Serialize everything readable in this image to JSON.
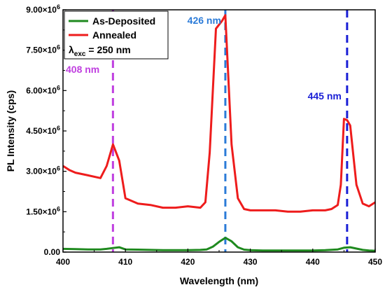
{
  "chart_data": {
    "type": "line",
    "xlabel": "Wavelength (nm)",
    "ylabel": "PL Intensity (cps)",
    "xlim": [
      400,
      450
    ],
    "ylim": [
      0,
      9000000
    ],
    "x_ticks": [
      400,
      410,
      420,
      430,
      440,
      450
    ],
    "x_tick_labels": [
      "400",
      "410",
      "420",
      "430",
      "440",
      "450"
    ],
    "y_ticks": [
      0,
      1500000,
      3000000,
      4500000,
      6000000,
      7500000,
      9000000
    ],
    "y_tick_labels": [
      {
        "base": "0.00",
        "exp": ""
      },
      {
        "base": "1.50×10",
        "exp": "6"
      },
      {
        "base": "3.00×10",
        "exp": "6"
      },
      {
        "base": "4.50×10",
        "exp": "6"
      },
      {
        "base": "6.00×10",
        "exp": "6"
      },
      {
        "base": "7.50×10",
        "exp": "6"
      },
      {
        "base": "9.00×10",
        "exp": "6"
      }
    ],
    "legend": {
      "position": "top-left",
      "entries": [
        {
          "label": "As-Deposited",
          "color": "#1f8a1f"
        },
        {
          "label": "Annealed",
          "color": "#ee1c1c"
        }
      ],
      "excitation": {
        "prefix": "λ",
        "sub": "exc",
        "suffix": " = 250 nm"
      }
    },
    "series": [
      {
        "name": "As-Deposited",
        "color": "#1f8a1f",
        "x": [
          400,
          402,
          404,
          406,
          407,
          408,
          409,
          410,
          412,
          414,
          416,
          418,
          420,
          422,
          423,
          424,
          425,
          426,
          427,
          428,
          429,
          430,
          432,
          434,
          436,
          438,
          440,
          442,
          444,
          445,
          446,
          447,
          448,
          449,
          450
        ],
        "y": [
          120000,
          110000,
          100000,
          100000,
          120000,
          150000,
          180000,
          100000,
          90000,
          80000,
          70000,
          70000,
          70000,
          80000,
          100000,
          200000,
          380000,
          530000,
          400000,
          180000,
          90000,
          70000,
          60000,
          60000,
          60000,
          60000,
          60000,
          70000,
          100000,
          160000,
          180000,
          130000,
          80000,
          60000,
          50000
        ]
      },
      {
        "name": "Annealed",
        "color": "#ee1c1c",
        "x": [
          400,
          401,
          402,
          404,
          406,
          407,
          408,
          409,
          410,
          412,
          414,
          416,
          418,
          420,
          422,
          422.8,
          423.5,
          424.5,
          425.5,
          426,
          427,
          428,
          429,
          430,
          432,
          434,
          436,
          438,
          440,
          442,
          443,
          444,
          444.5,
          445,
          445.5,
          446,
          447,
          448,
          449,
          450
        ],
        "y": [
          3200000,
          3050000,
          2950000,
          2850000,
          2750000,
          3200000,
          4000000,
          3400000,
          2000000,
          1800000,
          1750000,
          1650000,
          1650000,
          1700000,
          1650000,
          1850000,
          3700000,
          8300000,
          8600000,
          8800000,
          4000000,
          2000000,
          1600000,
          1550000,
          1550000,
          1550000,
          1500000,
          1500000,
          1550000,
          1550000,
          1600000,
          1750000,
          2500000,
          4950000,
          4900000,
          4700000,
          2500000,
          1800000,
          1700000,
          1850000
        ]
      }
    ],
    "vlines": [
      {
        "x": 408,
        "label": "408 nm",
        "color": "#c040e0",
        "label_pos": "below-legend"
      },
      {
        "x": 426,
        "label": "426 nm",
        "color": "#2b7bd8",
        "label_pos": "top"
      },
      {
        "x": 445.5,
        "label": "445 nm",
        "color": "#1a1fd6",
        "label_pos": "left-of-line"
      }
    ]
  }
}
